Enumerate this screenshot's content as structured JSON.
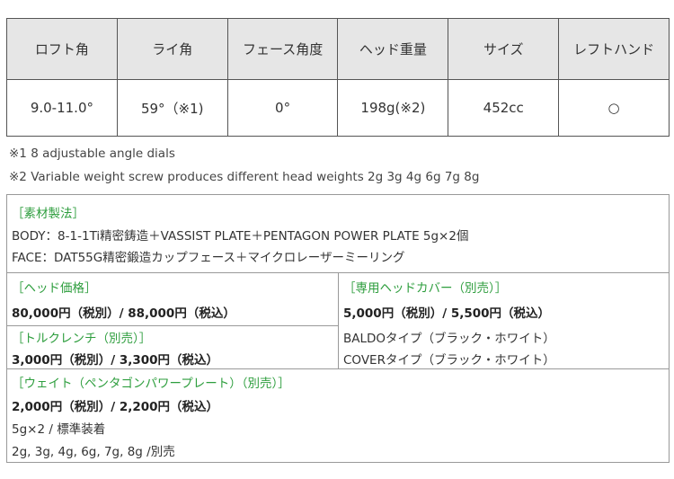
{
  "spec_table": {
    "headers": [
      "ロフト角",
      "ライ角",
      "フェース角度",
      "ヘッド重量",
      "サイズ",
      "レフトハンド"
    ],
    "values": [
      "9.0-11.0°",
      "59°（※1)",
      "0°",
      "198g(※2)",
      "452cc",
      "○"
    ]
  },
  "notes": [
    "※1  8 adjustable angle dials",
    "※2 Variable weight screw produces different head weights 2g 3g 4g 6g 7g 8g"
  ],
  "material": {
    "title": "［素材製法］",
    "body": "BODY：8-1-1Ti精密鋳造＋VASSIST PLATE＋PENTAGON POWER PLATE 5g×2個",
    "face": "FACE：DAT55G精密鍛造カップフェース＋マイクロレーザーミーリング"
  },
  "head_price": {
    "title": "［ヘッド価格］",
    "price": "80,000円（税別）/ 88,000円（税込）"
  },
  "wrench": {
    "title": "［トルクレンチ（別売）］",
    "price": "3,000円（税別）/ 3,300円（税込）"
  },
  "cover": {
    "title": "［専用ヘッドカバー（別売）］",
    "price": "5,000円（税別）/ 5,500円（税込）",
    "types": [
      "BALDOタイプ（ブラック・ホワイト）",
      "COVERタイプ（ブラック・ホワイト）"
    ]
  },
  "weight": {
    "title": "［ウェイト（ペンタゴンパワープレート）（別売）］",
    "price": "2,000円（税別）/ 2,200円（税込）",
    "lines": [
      "5g×2 / 標準装着",
      "2g, 3g, 4g, 6g, 7g, 8g /別売"
    ]
  },
  "colors": {
    "accent": "#2e9e3e",
    "header_bg": "#e6e6e6"
  }
}
